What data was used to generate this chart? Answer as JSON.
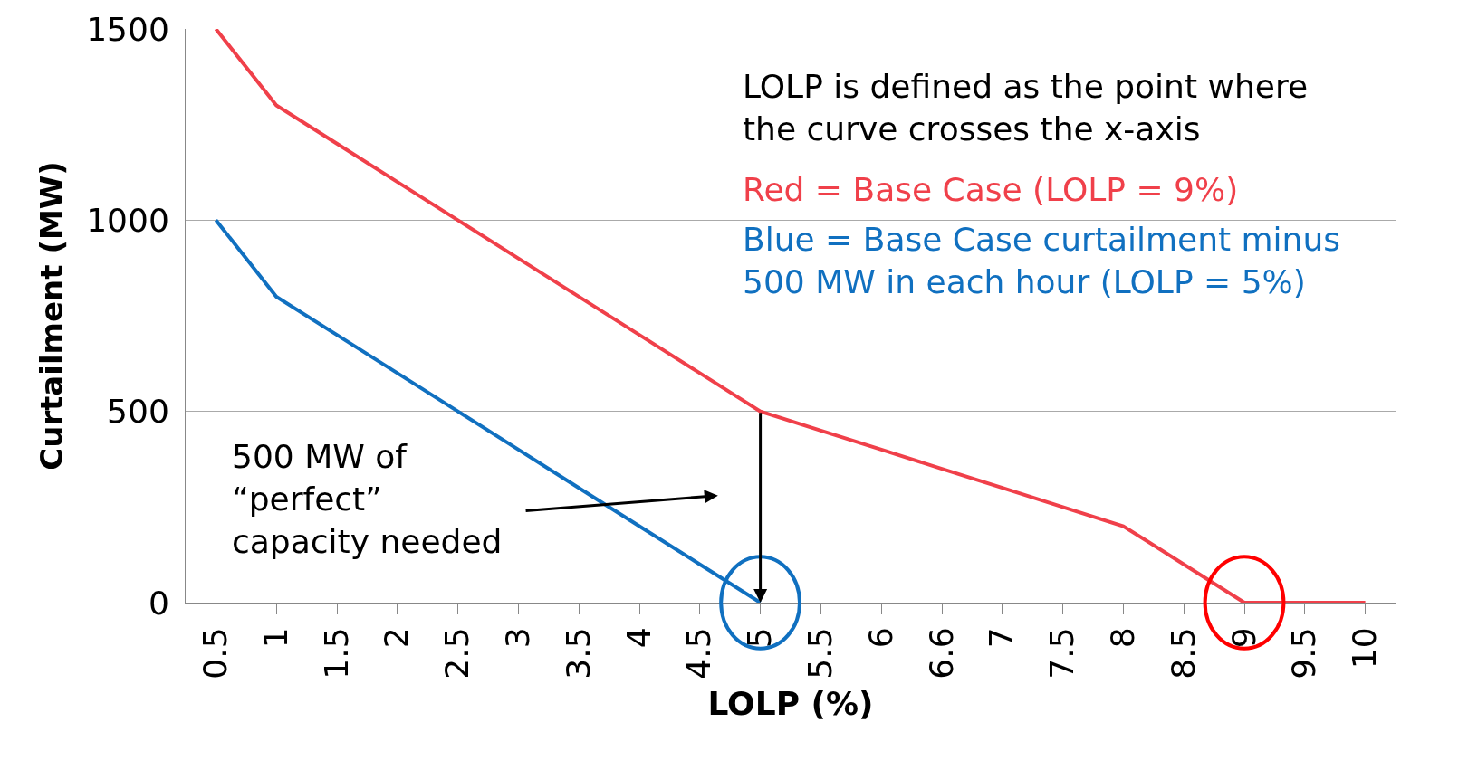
{
  "chart_data": {
    "type": "line",
    "xlabel": "LOLP (%)",
    "ylabel": "Curtailment (MW)",
    "categories": [
      "0.5",
      "1",
      "1.5",
      "2",
      "2.5",
      "3",
      "3.5",
      "4",
      "4.5",
      "5",
      "5.5",
      "6",
      "6.6",
      "7",
      "7.5",
      "8",
      "8.5",
      "9",
      "9.5",
      "10"
    ],
    "series": [
      {
        "color": "#f0404a",
        "values": [
          1500,
          1300,
          1200,
          1100,
          1000,
          900,
          800,
          700,
          600,
          500,
          450,
          400,
          350,
          300,
          250,
          200,
          100,
          0,
          0,
          0
        ]
      },
      {
        "color": "#1070c0",
        "values": [
          1000,
          800,
          700,
          600,
          500,
          400,
          300,
          200,
          100,
          0,
          null,
          null,
          null,
          null,
          null,
          null,
          null,
          null,
          null,
          null
        ]
      }
    ],
    "ylim": [
      0,
      1500
    ],
    "yticks": [
      0,
      500,
      1000,
      1500
    ],
    "grid": "y",
    "marker": "none",
    "line_style": "solid",
    "annotations": [
      "LOLP is defined as the point where\nthe curve crosses the x-axis",
      "Red = Base Case (LOLP = 9%)",
      "Blue = Base Case curtailment minus\n500 MW in each hour (LOLP = 5%)",
      "500 MW of\n“perfect”\ncapacity needed"
    ]
  }
}
